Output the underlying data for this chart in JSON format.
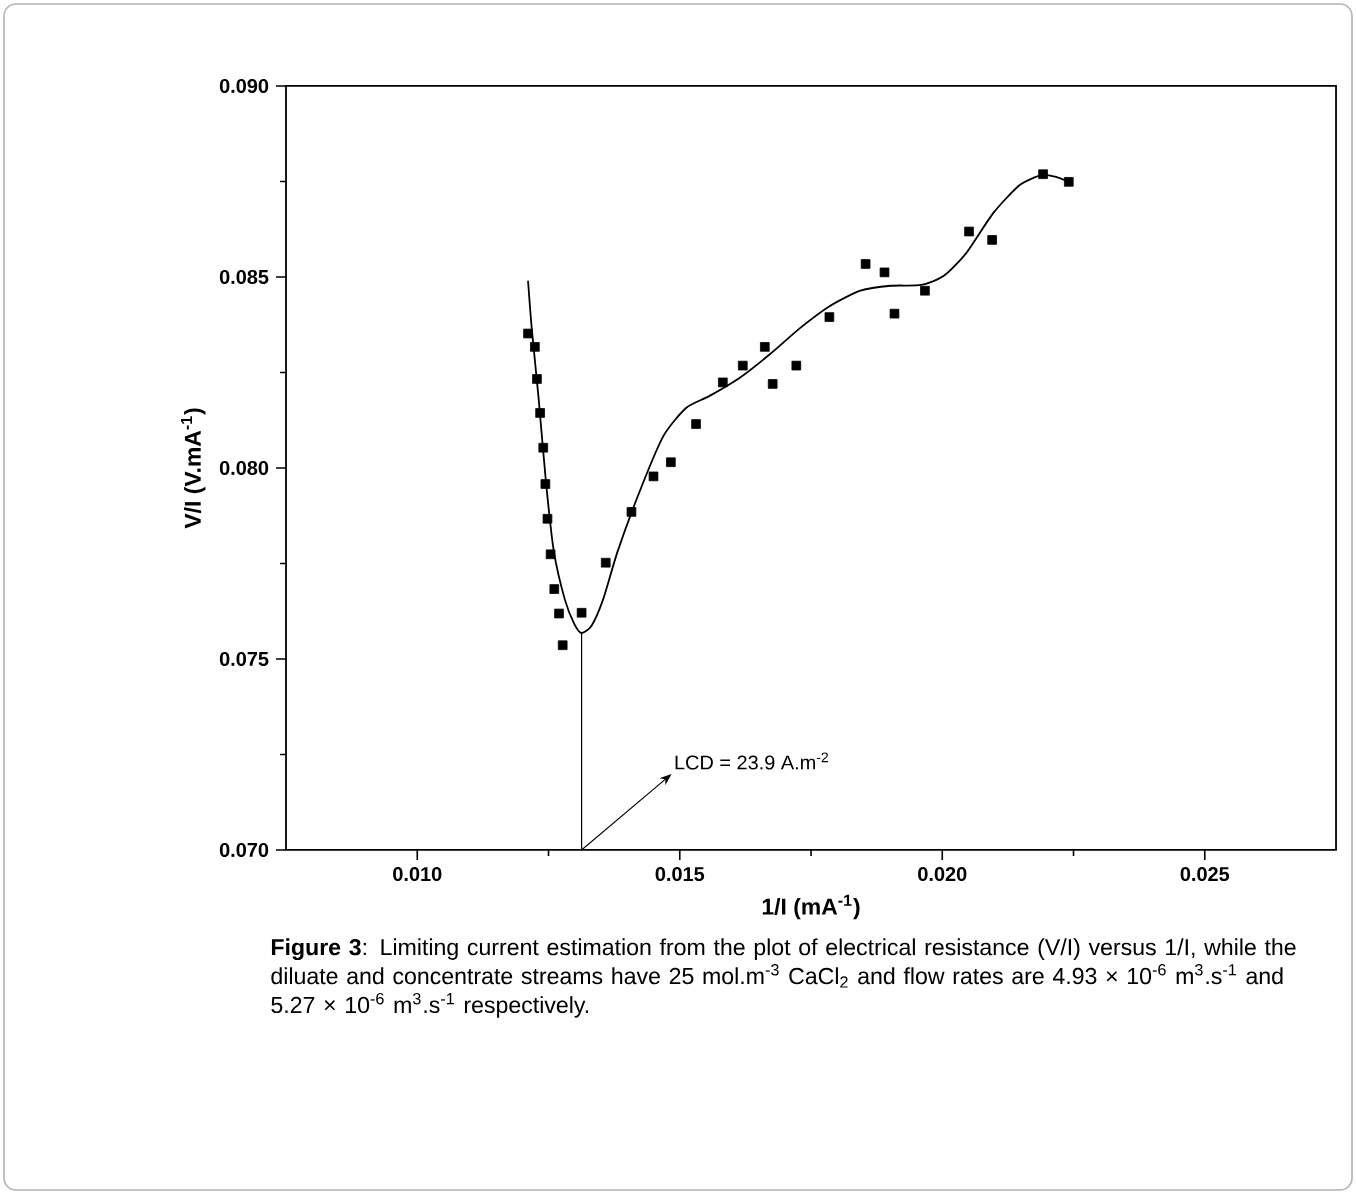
{
  "chart_data": {
    "type": "scatter",
    "xlabel": "1/I (mA$^{-1}$)",
    "ylabel": "V/I (V.mA$^{-1}$)",
    "xlim": [
      0.0075,
      0.0275
    ],
    "ylim": [
      0.07,
      0.09
    ],
    "xticks": [
      {
        "value": 0.01,
        "label": "0.010"
      },
      {
        "value": 0.015,
        "label": "0.015"
      },
      {
        "value": 0.02,
        "label": "0.020"
      },
      {
        "value": 0.025,
        "label": "0.025"
      }
    ],
    "yticks": [
      {
        "value": 0.07,
        "label": "0.070"
      },
      {
        "value": 0.075,
        "label": "0.075"
      },
      {
        "value": 0.08,
        "label": "0.080"
      },
      {
        "value": 0.085,
        "label": "0.085"
      },
      {
        "value": 0.09,
        "label": "0.090"
      }
    ],
    "series": [
      {
        "marker": "square",
        "color": "#000000",
        "x": [
          0.01211,
          0.01224,
          0.01228,
          0.01234,
          0.0124,
          0.01244,
          0.01248,
          0.01254,
          0.01261,
          0.0127,
          0.01277,
          0.01313,
          0.01359,
          0.01408,
          0.0145,
          0.01483,
          0.01531,
          0.01582,
          0.0162,
          0.01662,
          0.01677,
          0.01722,
          0.01785,
          0.01854,
          0.0189,
          0.01909,
          0.01967,
          0.02051,
          0.02095,
          0.02192,
          0.02241
        ],
        "values": [
          0.08352,
          0.08317,
          0.08233,
          0.08144,
          0.08053,
          0.07958,
          0.07867,
          0.07774,
          0.07683,
          0.07619,
          0.07536,
          0.07621,
          0.07752,
          0.07885,
          0.07978,
          0.08015,
          0.08115,
          0.08224,
          0.08268,
          0.08317,
          0.0822,
          0.08268,
          0.08395,
          0.08534,
          0.08512,
          0.08404,
          0.08464,
          0.08619,
          0.08597,
          0.08769,
          0.08749
        ]
      },
      {
        "type": "line",
        "marker": "none",
        "line_style": "solid",
        "color": "#000000",
        "x": [
          0.01211,
          0.01218,
          0.01231,
          0.01245,
          0.0126,
          0.01281,
          0.01299,
          0.01313,
          0.01332,
          0.01354,
          0.01382,
          0.01426,
          0.01469,
          0.01512,
          0.01556,
          0.01613,
          0.01671,
          0.01729,
          0.01786,
          0.01844,
          0.01902,
          0.0196,
          0.02003,
          0.02046,
          0.02097,
          0.02147,
          0.0219,
          0.02219,
          0.02241
        ],
        "values": [
          0.0849,
          0.08366,
          0.08184,
          0.07965,
          0.07783,
          0.07656,
          0.07592,
          0.07568,
          0.07587,
          0.07656,
          0.07783,
          0.07947,
          0.08084,
          0.08157,
          0.08188,
          0.08235,
          0.08297,
          0.08366,
          0.08424,
          0.08464,
          0.08477,
          0.08479,
          0.08503,
          0.08563,
          0.08667,
          0.0874,
          0.08767,
          0.08761,
          0.08749
        ]
      }
    ],
    "annotations": [
      {
        "text": "LCD = 23.9 A.m$^{-2}$",
        "x": 0.01313,
        "y": 0.07568
      },
      "**Figure 3**: Limiting current estimation from the plot of electrical resistance (V/I) versus 1/I, while the diluate and concentrate streams have 25 mol.m$^{-3}$ CaCl$_{2}$ and flow rates are 4.93 × 10$^{-6}$ m$^{3}$.s$^{-1}$ and 5.27 × 10$^{-6}$ m$^{3}$.s$^{-1}$ respectively."
    ]
  }
}
